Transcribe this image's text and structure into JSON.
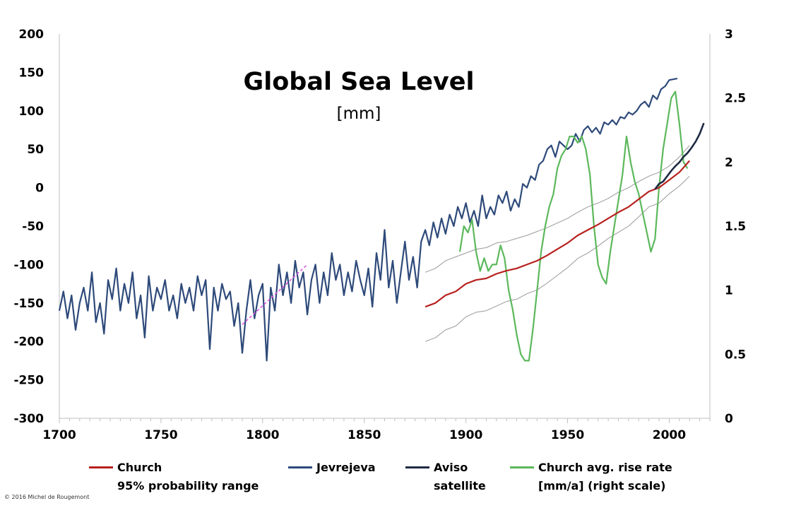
{
  "chart_data": {
    "type": "line",
    "title": "Global Sea Level",
    "subtitle": "[mm]",
    "xlim": [
      1700,
      2020
    ],
    "ylim_left": [
      -300,
      200
    ],
    "ylim_right": [
      0,
      3
    ],
    "x_ticks": [
      "1700",
      "1750",
      "1800",
      "1850",
      "1900",
      "1950",
      "2000"
    ],
    "y_ticks_left": [
      "200",
      "150",
      "100",
      "50",
      "0",
      "-50",
      "-100",
      "-150",
      "-200",
      "-250",
      "-300"
    ],
    "y_ticks_right": [
      "3",
      "2.5",
      "2",
      "1.5",
      "1",
      "0.5",
      "0"
    ],
    "grid": false,
    "legend_position": "bottom",
    "series": [
      {
        "name": "Jevrejeva",
        "axis": "left",
        "color": "#2e4a7a",
        "x": [
          1700,
          1702,
          1704,
          1706,
          1708,
          1710,
          1712,
          1714,
          1716,
          1718,
          1720,
          1722,
          1724,
          1726,
          1728,
          1730,
          1732,
          1734,
          1736,
          1738,
          1740,
          1742,
          1744,
          1746,
          1748,
          1750,
          1752,
          1754,
          1756,
          1758,
          1760,
          1762,
          1764,
          1766,
          1768,
          1770,
          1772,
          1774,
          1776,
          1778,
          1780,
          1782,
          1784,
          1786,
          1788,
          1790,
          1792,
          1794,
          1796,
          1798,
          1800,
          1802,
          1804,
          1806,
          1808,
          1810,
          1812,
          1814,
          1816,
          1818,
          1820,
          1822,
          1824,
          1826,
          1828,
          1830,
          1832,
          1834,
          1836,
          1838,
          1840,
          1842,
          1844,
          1846,
          1848,
          1850,
          1852,
          1854,
          1856,
          1858,
          1860,
          1862,
          1864,
          1866,
          1868,
          1870,
          1872,
          1874,
          1876,
          1878,
          1880,
          1882,
          1884,
          1886,
          1888,
          1890,
          1892,
          1894,
          1896,
          1898,
          1900,
          1902,
          1904,
          1906,
          1908,
          1910,
          1912,
          1914,
          1916,
          1918,
          1920,
          1922,
          1924,
          1926,
          1928,
          1930,
          1932,
          1934,
          1936,
          1938,
          1940,
          1942,
          1944,
          1946,
          1948,
          1950,
          1952,
          1954,
          1956,
          1958,
          1960,
          1962,
          1964,
          1966,
          1968,
          1970,
          1972,
          1974,
          1976,
          1978,
          1980,
          1982,
          1984,
          1986,
          1988,
          1990,
          1992,
          1994,
          1996,
          1998,
          2000,
          2002,
          2004
        ],
        "values": [
          -160,
          -135,
          -170,
          -140,
          -185,
          -150,
          -130,
          -160,
          -110,
          -175,
          -150,
          -190,
          -120,
          -145,
          -105,
          -160,
          -125,
          -150,
          -110,
          -170,
          -140,
          -195,
          -115,
          -160,
          -130,
          -145,
          -120,
          -160,
          -140,
          -170,
          -125,
          -150,
          -130,
          -160,
          -115,
          -140,
          -120,
          -210,
          -130,
          -160,
          -125,
          -145,
          -135,
          -180,
          -150,
          -215,
          -160,
          -120,
          -170,
          -140,
          -125,
          -225,
          -130,
          -160,
          -100,
          -140,
          -110,
          -150,
          -95,
          -130,
          -110,
          -165,
          -120,
          -100,
          -150,
          -110,
          -140,
          -85,
          -120,
          -100,
          -140,
          -110,
          -135,
          -95,
          -120,
          -140,
          -105,
          -155,
          -85,
          -120,
          -55,
          -130,
          -95,
          -150,
          -110,
          -70,
          -120,
          -90,
          -130,
          -70,
          -55,
          -75,
          -45,
          -65,
          -40,
          -60,
          -35,
          -50,
          -25,
          -40,
          -20,
          -45,
          -30,
          -50,
          -10,
          -40,
          -25,
          -35,
          -10,
          -20,
          -5,
          -30,
          -15,
          -25,
          5,
          0,
          15,
          10,
          30,
          35,
          50,
          55,
          40,
          60,
          55,
          50,
          55,
          70,
          60,
          75,
          80,
          72,
          78,
          70,
          85,
          82,
          88,
          82,
          92,
          90,
          98,
          95,
          100,
          108,
          112,
          105,
          120,
          115,
          128,
          132,
          140,
          141,
          142
        ]
      },
      {
        "name": "Church",
        "axis": "left",
        "color": "#b8211e",
        "x": [
          1880,
          1885,
          1890,
          1895,
          1900,
          1905,
          1910,
          1915,
          1920,
          1925,
          1930,
          1935,
          1940,
          1945,
          1950,
          1955,
          1960,
          1965,
          1970,
          1975,
          1980,
          1985,
          1990,
          1995,
          2000,
          2005,
          2010
        ],
        "values": [
          -155,
          -150,
          -140,
          -135,
          -125,
          -120,
          -118,
          -112,
          -108,
          -105,
          -100,
          -95,
          -88,
          -80,
          -72,
          -62,
          -55,
          -48,
          -40,
          -32,
          -25,
          -15,
          -5,
          0,
          10,
          20,
          35
        ]
      },
      {
        "name": "95% probability range",
        "axis": "left",
        "color": "#999999",
        "x": [
          1880,
          1885,
          1890,
          1895,
          1900,
          1905,
          1910,
          1915,
          1920,
          1925,
          1930,
          1935,
          1940,
          1945,
          1950,
          1955,
          1960,
          1965,
          1970,
          1975,
          1980,
          1985,
          1990,
          1995,
          2000,
          2005,
          2010
        ],
        "values": [
          -110,
          -105,
          -95,
          -90,
          -85,
          -80,
          -78,
          -72,
          -70,
          -66,
          -62,
          -57,
          -52,
          -46,
          -40,
          -32,
          -25,
          -20,
          -14,
          -6,
          0,
          8,
          15,
          20,
          28,
          40,
          55
        ]
      },
      {
        "name": "95% probability range",
        "axis": "left",
        "color": "#999999",
        "x": [
          1880,
          1885,
          1890,
          1895,
          1900,
          1905,
          1910,
          1915,
          1920,
          1925,
          1930,
          1935,
          1940,
          1945,
          1950,
          1955,
          1960,
          1965,
          1970,
          1975,
          1980,
          1985,
          1990,
          1995,
          2000,
          2005,
          2010
        ],
        "values": [
          -200,
          -195,
          -185,
          -180,
          -168,
          -162,
          -160,
          -154,
          -148,
          -145,
          -138,
          -133,
          -124,
          -114,
          -104,
          -92,
          -85,
          -76,
          -66,
          -58,
          -50,
          -38,
          -25,
          -20,
          -8,
          2,
          15
        ]
      },
      {
        "name": "Aviso satellite",
        "axis": "left",
        "color": "#1f2a44",
        "x": [
          1993,
          1995,
          1997,
          1999,
          2001,
          2003,
          2005,
          2007,
          2009,
          2011,
          2013,
          2015,
          2017
        ],
        "values": [
          -2,
          5,
          8,
          15,
          22,
          28,
          33,
          40,
          45,
          52,
          60,
          70,
          84
        ]
      },
      {
        "name": "Church avg. rise rate [mm/a] (right scale)",
        "axis": "right",
        "color": "#5cb85c",
        "x": [
          1897,
          1899,
          1901,
          1903,
          1905,
          1907,
          1909,
          1911,
          1913,
          1915,
          1917,
          1919,
          1921,
          1923,
          1925,
          1927,
          1929,
          1931,
          1933,
          1935,
          1937,
          1939,
          1941,
          1943,
          1945,
          1947,
          1949,
          1951,
          1953,
          1955,
          1957,
          1959,
          1961,
          1963,
          1965,
          1967,
          1969,
          1971,
          1973,
          1975,
          1977,
          1979,
          1981,
          1983,
          1985,
          1987,
          1989,
          1991,
          1993,
          1995,
          1997,
          1999,
          2001,
          2003,
          2005,
          2007,
          2009
        ],
        "values": [
          1.3,
          1.5,
          1.45,
          1.55,
          1.3,
          1.15,
          1.25,
          1.15,
          1.2,
          1.2,
          1.35,
          1.25,
          1.0,
          0.85,
          0.65,
          0.5,
          0.45,
          0.45,
          0.7,
          1.0,
          1.3,
          1.5,
          1.65,
          1.75,
          1.95,
          2.05,
          2.1,
          2.2,
          2.2,
          2.15,
          2.2,
          2.1,
          1.9,
          1.5,
          1.2,
          1.1,
          1.05,
          1.3,
          1.5,
          1.7,
          1.9,
          2.2,
          2.0,
          1.85,
          1.75,
          1.6,
          1.45,
          1.3,
          1.4,
          1.8,
          2.1,
          2.3,
          2.5,
          2.55,
          2.3,
          2.0,
          1.95
        ]
      }
    ],
    "annotations": [
      {
        "type": "dashed-trend",
        "color": "#e055e0",
        "x": [
          1790,
          1822
        ],
        "values": [
          -178,
          -100
        ]
      }
    ],
    "legend": [
      {
        "label": "Church",
        "label2": "95% probability range",
        "color": "#b8211e"
      },
      {
        "label": "Jevrejeva",
        "label2": "",
        "color": "#2e4a7a"
      },
      {
        "label": "Aviso",
        "label2": "satellite",
        "color": "#1f2a44"
      },
      {
        "label": "Church avg. rise rate",
        "label2": "[mm/a] (right scale)",
        "color": "#5cb85c"
      }
    ]
  },
  "copyright": "© 2016  Michel de Rougemont"
}
